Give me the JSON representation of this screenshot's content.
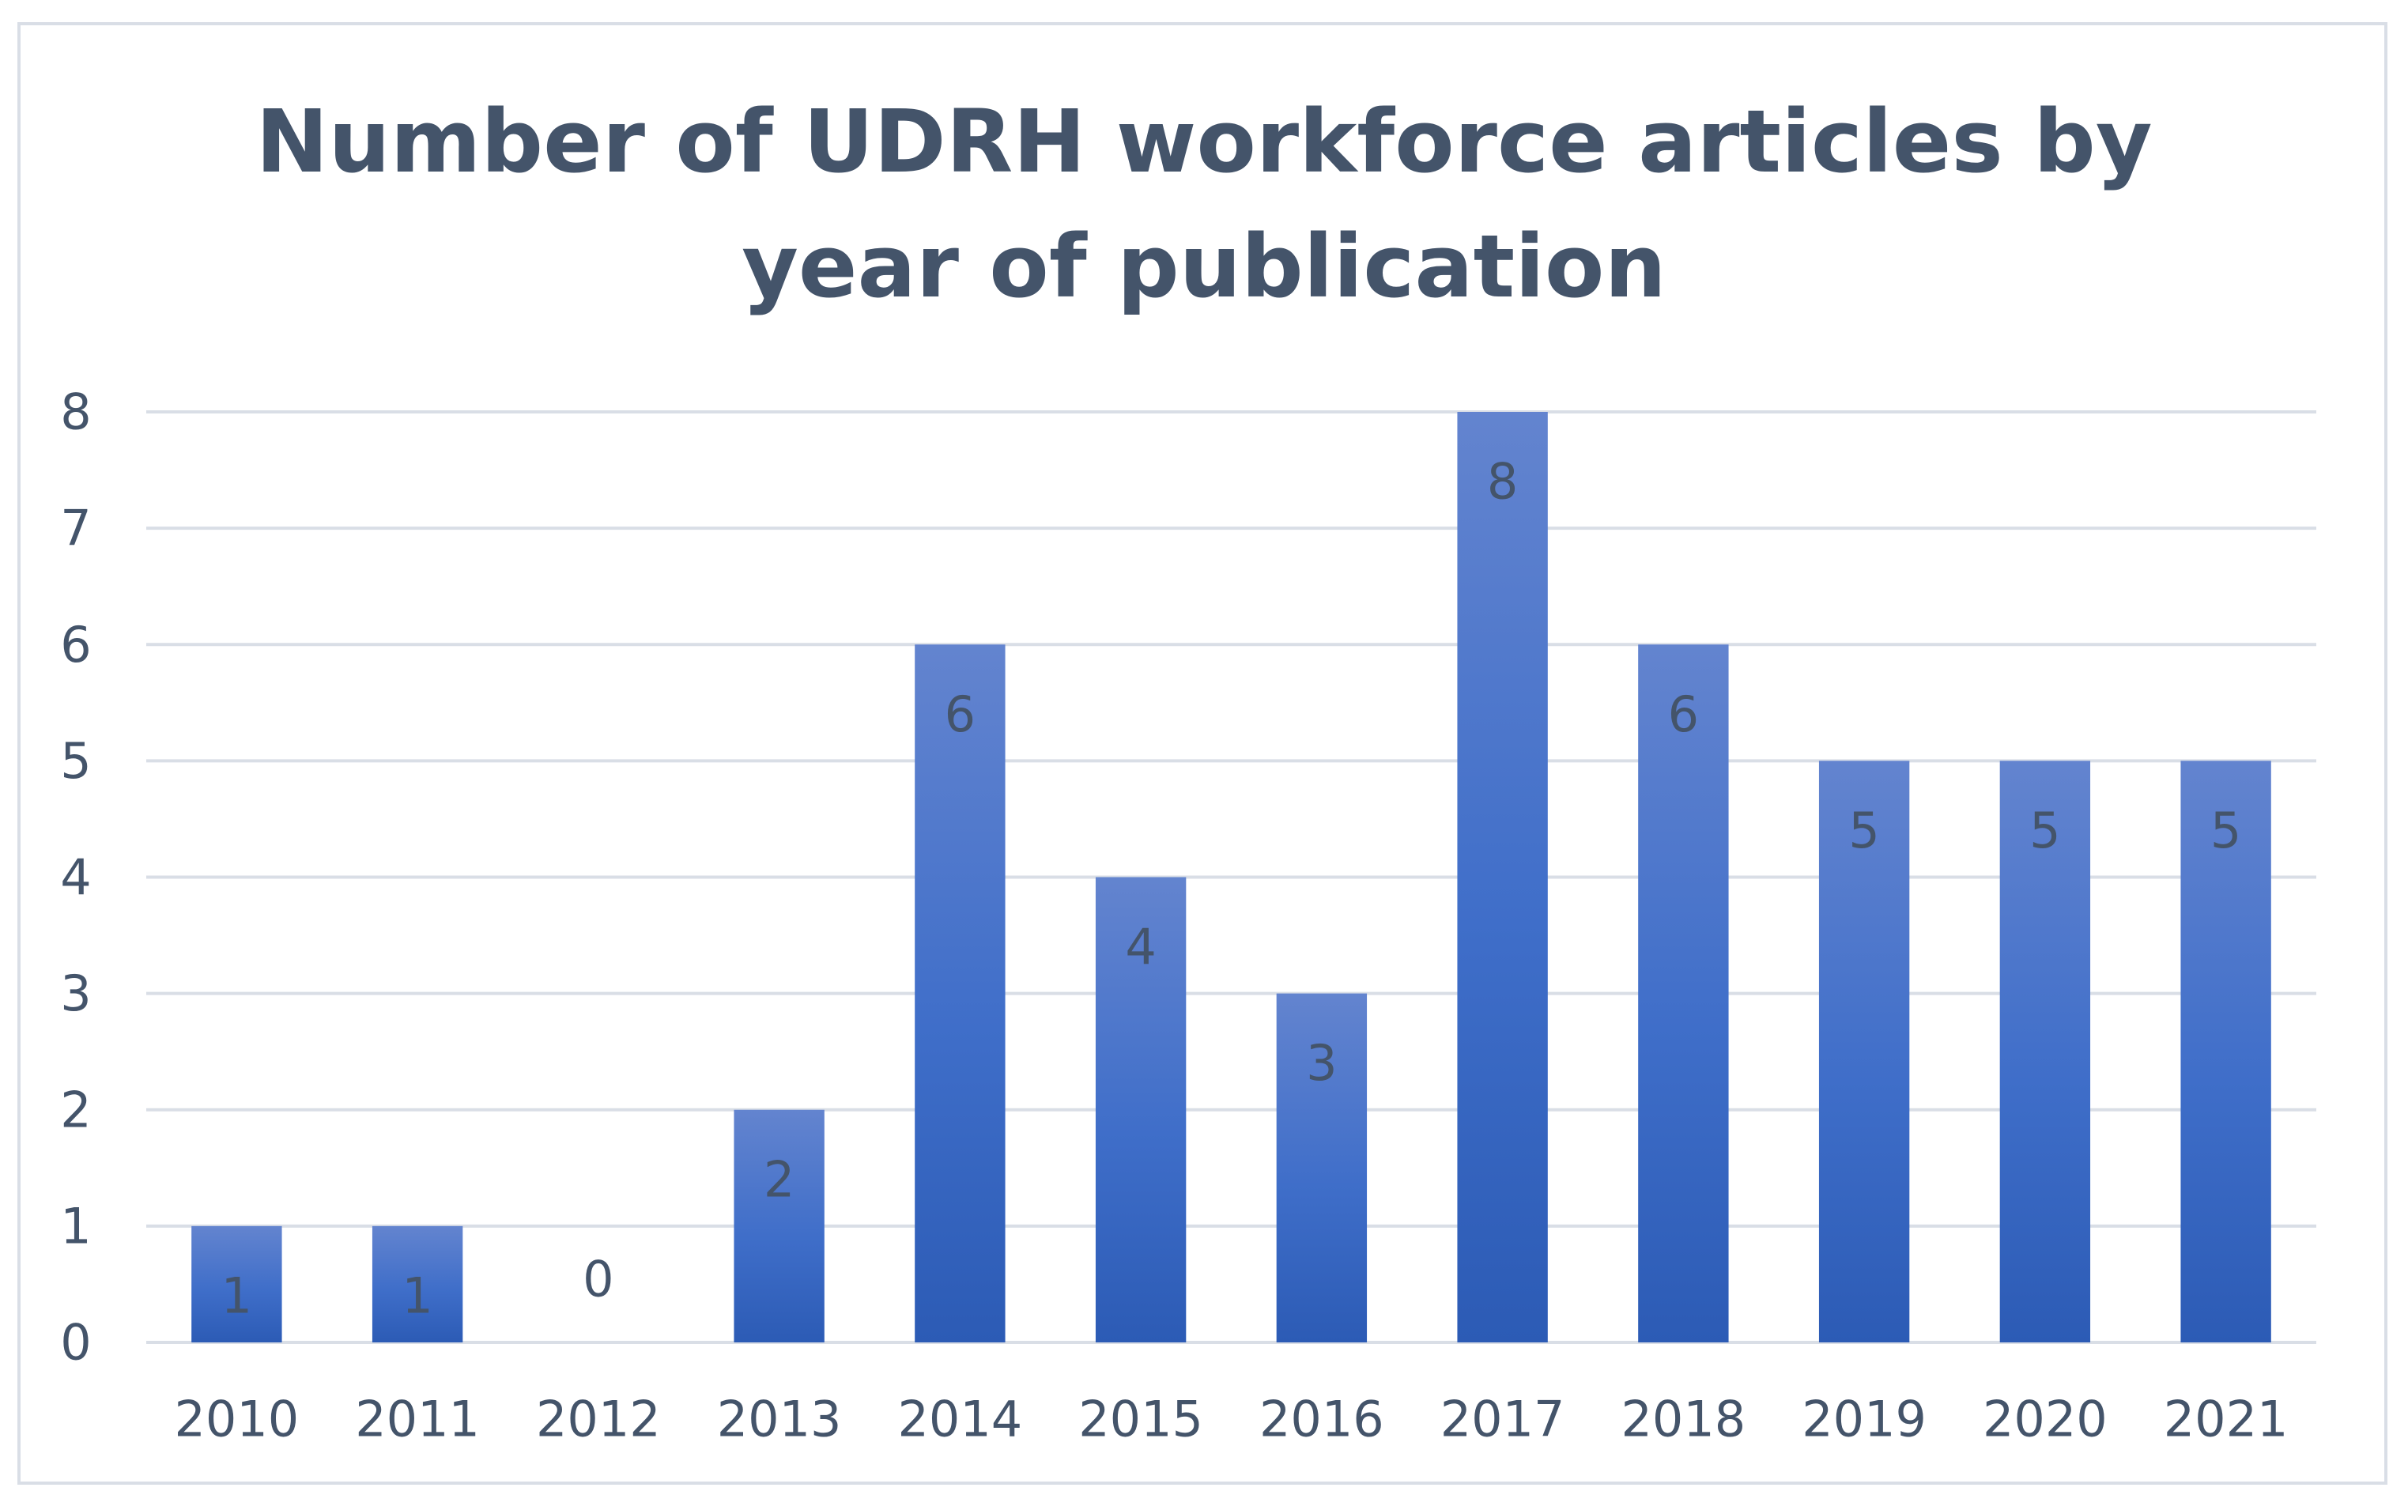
{
  "chart_data": {
    "type": "bar",
    "title_lines": [
      "Number of UDRH workforce articles by",
      "year of publication"
    ],
    "categories": [
      "2010",
      "2011",
      "2012",
      "2013",
      "2014",
      "2015",
      "2016",
      "2017",
      "2018",
      "2019",
      "2020",
      "2021"
    ],
    "values": [
      1,
      1,
      0,
      2,
      6,
      4,
      3,
      8,
      6,
      5,
      5,
      5
    ],
    "ylim": [
      0,
      8
    ],
    "yticks": [
      0,
      1,
      2,
      3,
      4,
      5,
      6,
      7,
      8
    ],
    "grid": true,
    "legend": "none",
    "data_labels": true,
    "colors": {
      "bar_top": "#6384cf",
      "bar_mid": "#3f6ec9",
      "bar_bottom": "#2c5bb5",
      "grid": "#d9dee6",
      "text": "#44546a"
    }
  }
}
